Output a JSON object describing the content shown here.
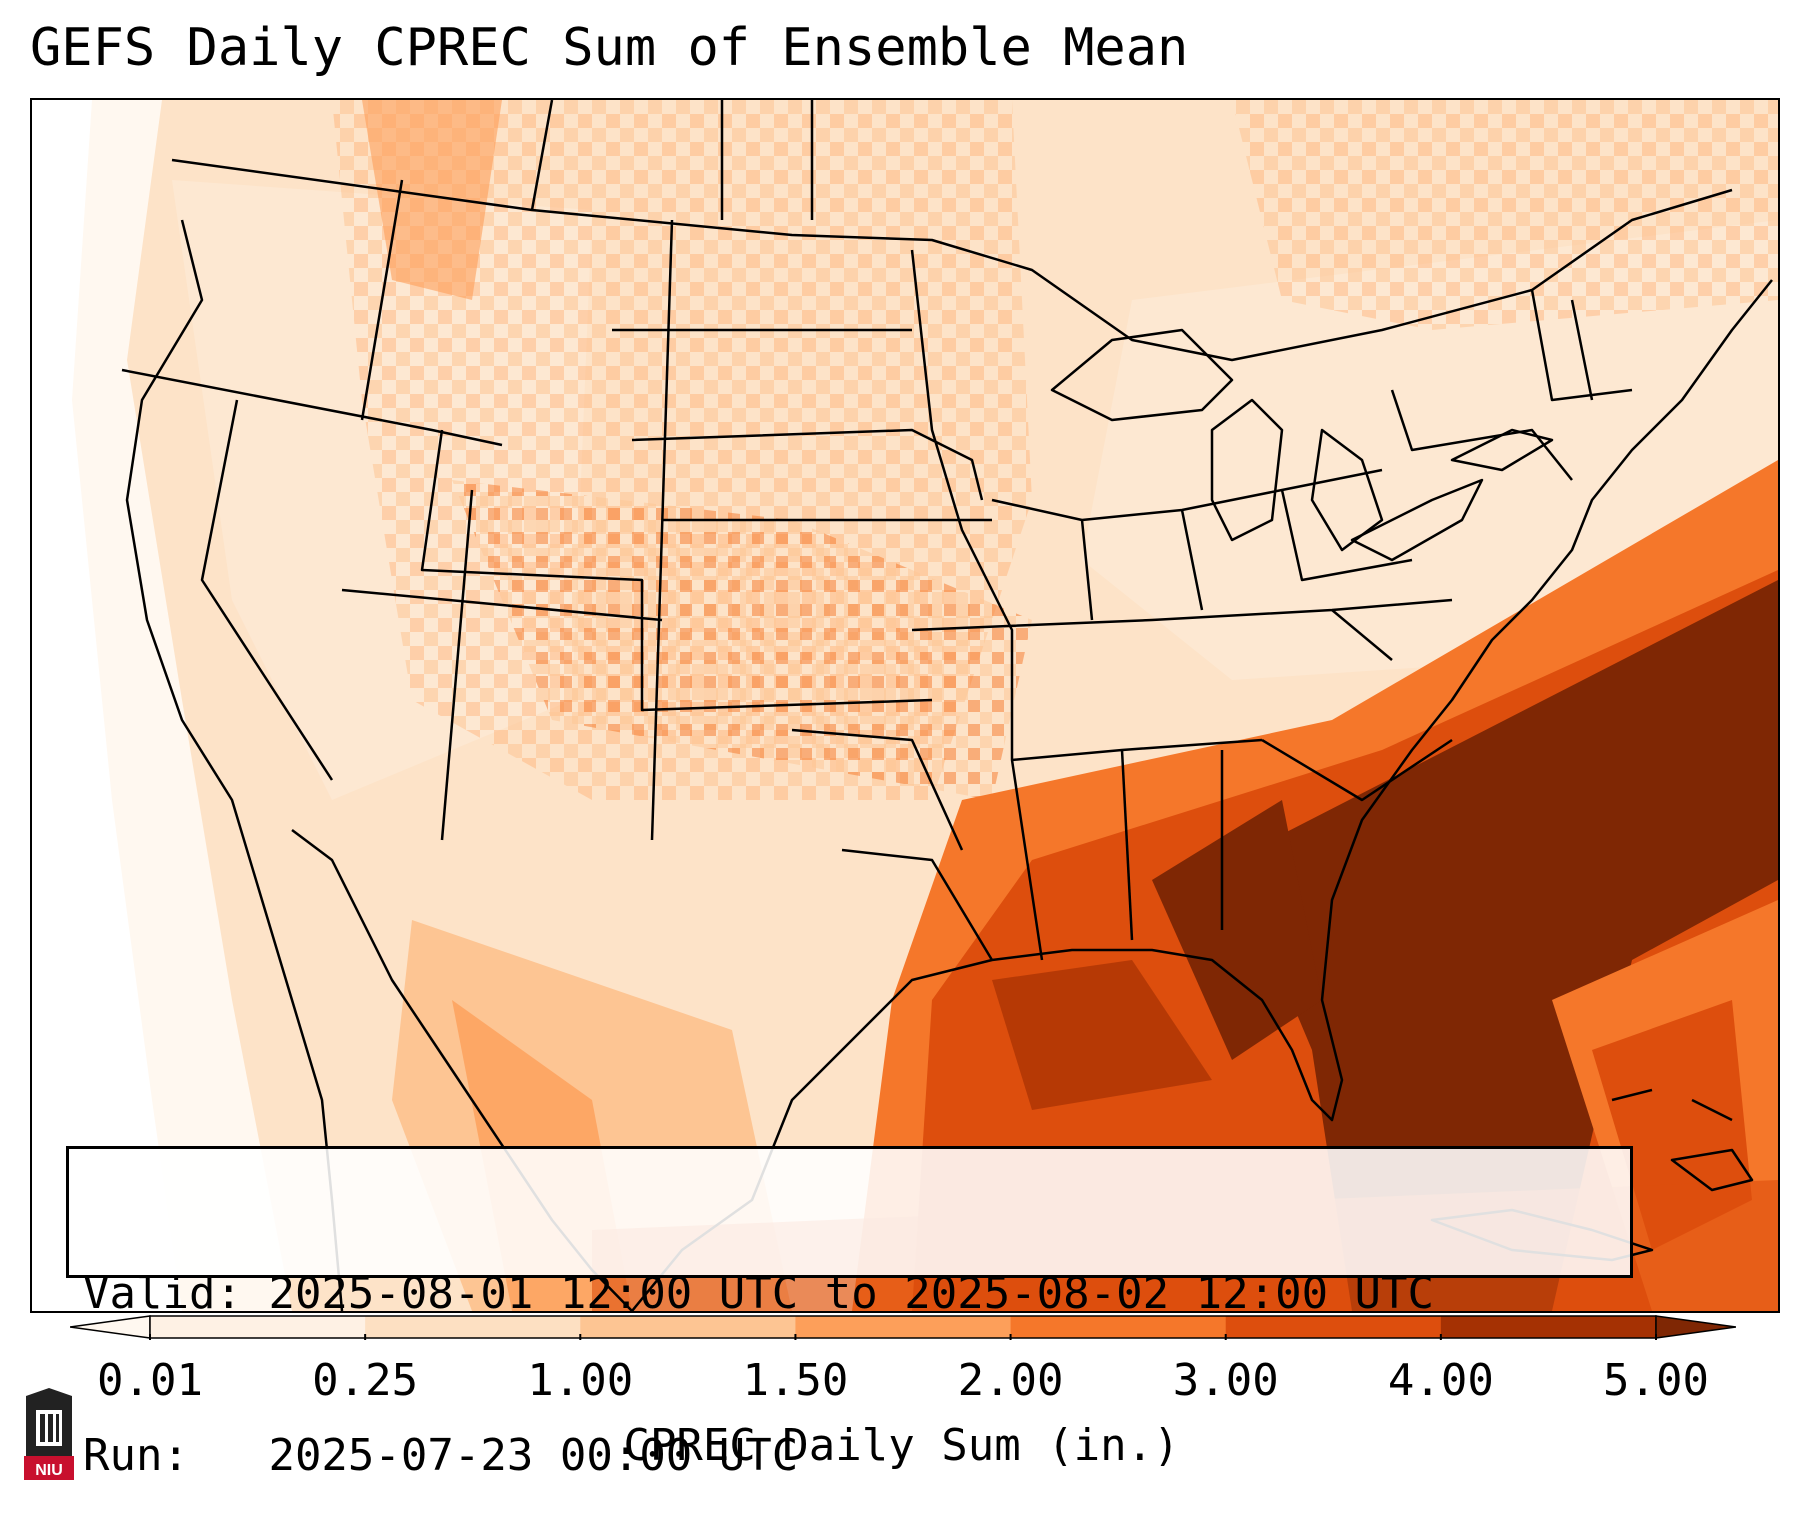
{
  "title": "GEFS Daily CPREC Sum of Ensemble Mean",
  "info": {
    "valid_label": "Valid:",
    "valid_value": "2025-08-01 12:00 UTC to 2025-08-02 12:00 UTC",
    "run_label": "Run:",
    "run_value": "2025-07-23 00:00 UTC"
  },
  "colorbar": {
    "label": "CPREC Daily Sum (in.)",
    "ticks": [
      "0.01",
      "0.25",
      "1.00",
      "1.50",
      "2.00",
      "3.00",
      "4.00",
      "5.00"
    ],
    "colors": [
      "#fef1e4",
      "#fde0c2",
      "#fdc593",
      "#fd9f5a",
      "#f5772a",
      "#dd4e0d",
      "#a53103"
    ],
    "under_color": "#fff8f0",
    "over_color": "#7f2704"
  },
  "logo": {
    "text": "NIU",
    "colors": {
      "tower": "#222222",
      "badge": "#c8102e"
    }
  }
}
